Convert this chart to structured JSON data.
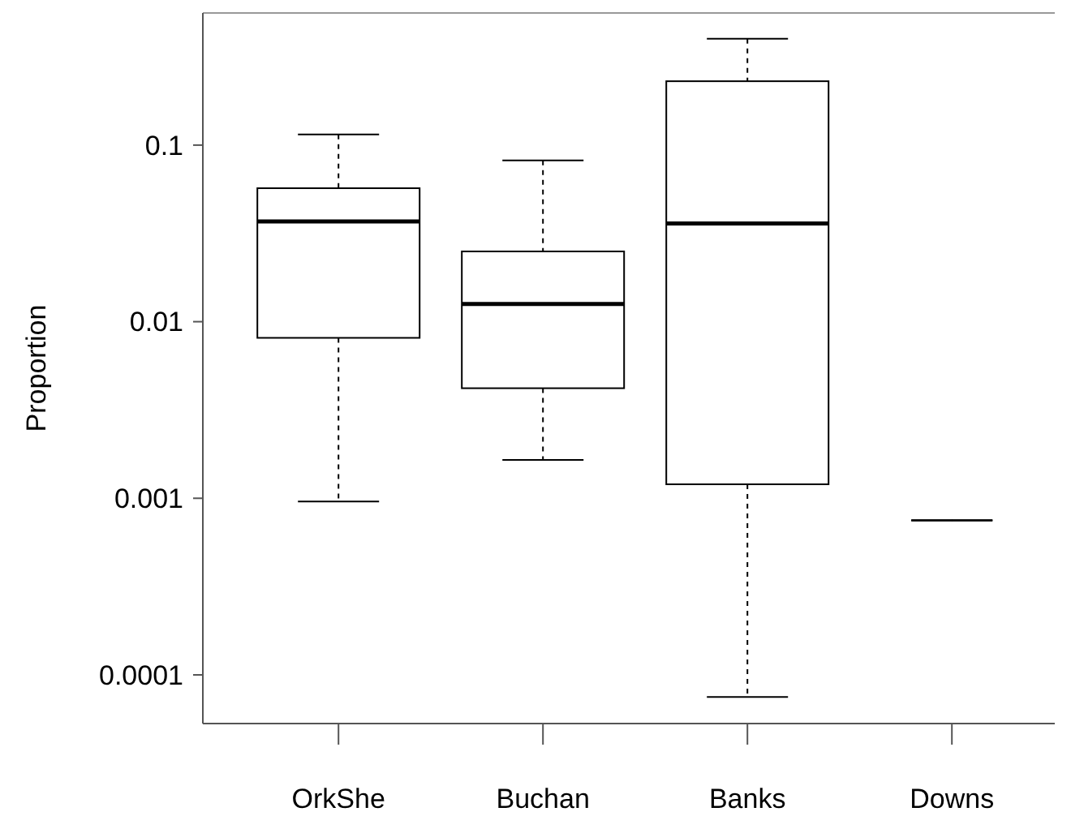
{
  "chart_data": {
    "type": "box",
    "ylabel": "Proportion",
    "categories": [
      "OrkShe",
      "Buchan",
      "Banks",
      "Downs"
    ],
    "boxes": [
      {
        "low": 0.00096,
        "q1": 0.0081,
        "median": 0.037,
        "q3": 0.057,
        "high": 0.115
      },
      {
        "low": 0.00165,
        "q1": 0.0042,
        "median": 0.0126,
        "q3": 0.025,
        "high": 0.082
      },
      {
        "low": 7.5e-05,
        "q1": 0.0012,
        "median": 0.036,
        "q3": 0.23,
        "high": 0.4
      },
      {
        "low": 0.00075,
        "q1": 0.00075,
        "median": 0.00075,
        "q3": 0.00075,
        "high": 0.00075
      }
    ],
    "log": true,
    "ylim": [
      5.3e-05,
      0.56
    ],
    "yticks": [
      0.1,
      0.01,
      0.001,
      0.0001
    ],
    "grid": false
  }
}
